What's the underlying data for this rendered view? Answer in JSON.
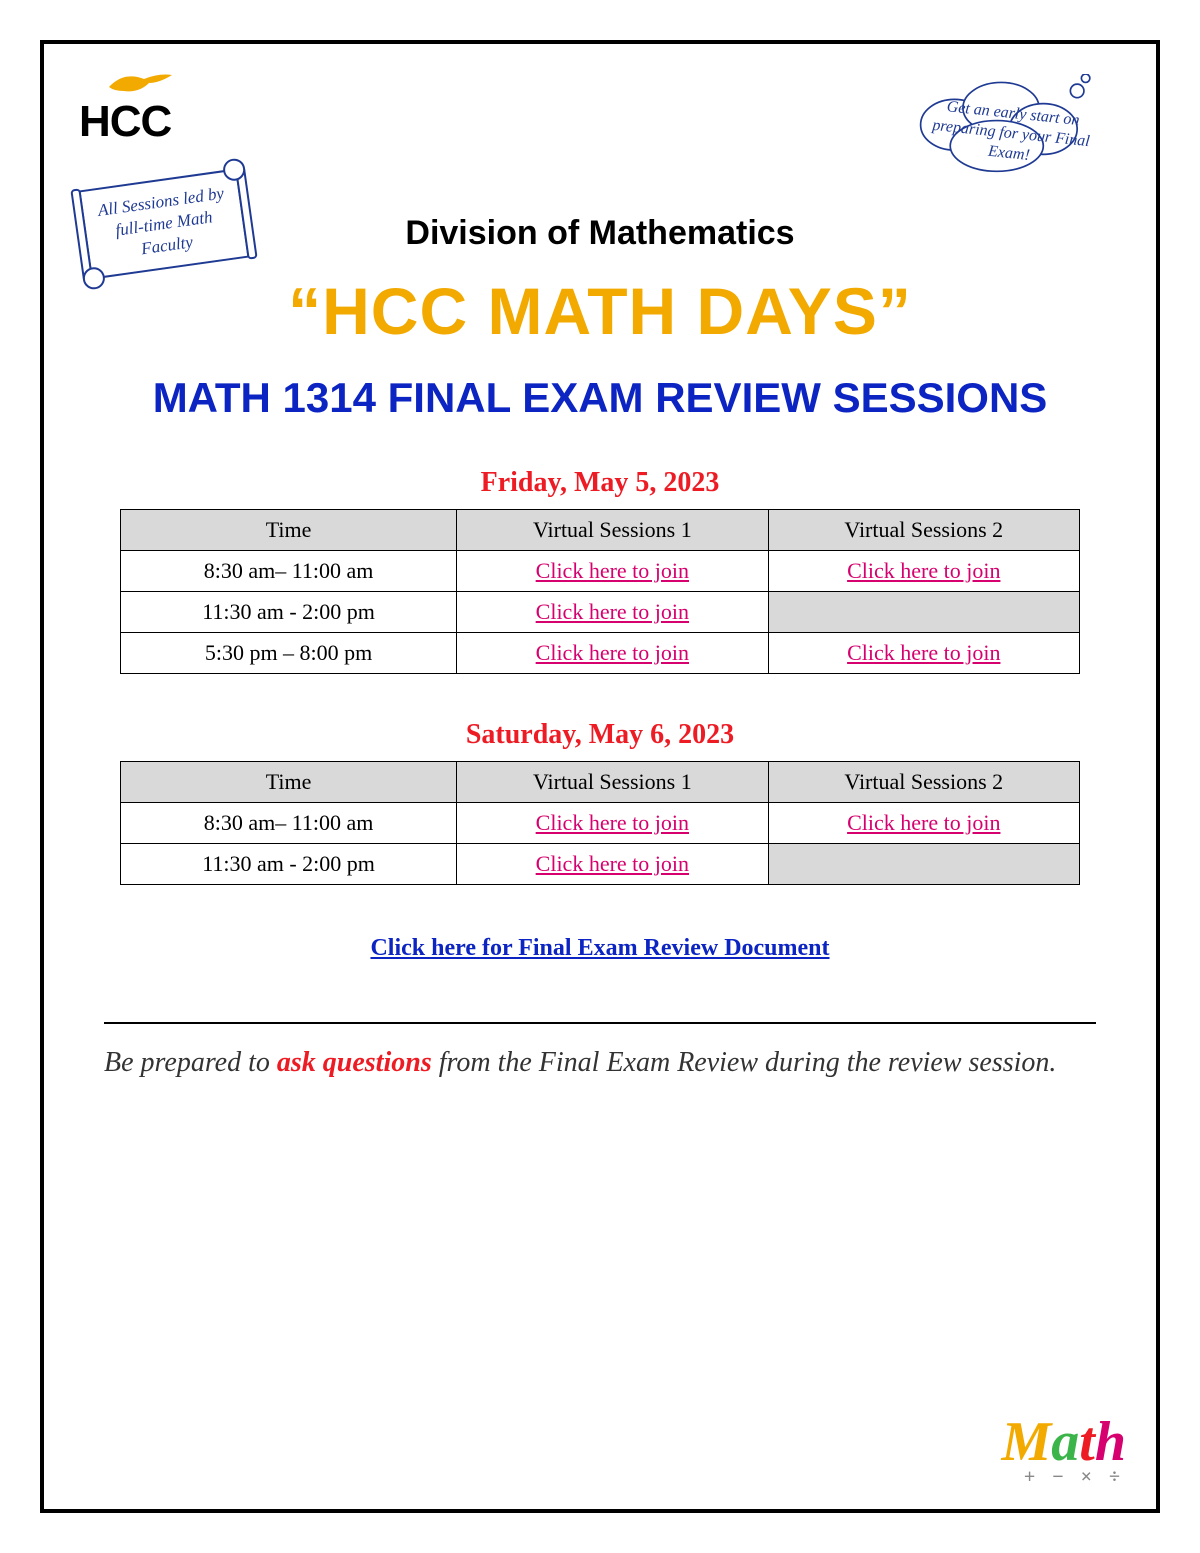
{
  "logo_text": "HCC",
  "scroll_note": "All Sessions led by full-time Math Faculty",
  "thought_bubble": "Get an early start on preparing for your Final Exam!",
  "division": "Division of Mathematics",
  "main_title": "“HCC MATH DAYS”",
  "sub_title": "MATH 1314 FINAL EXAM REVIEW SESSIONS",
  "columns": [
    "Time",
    "Virtual Sessions 1",
    "Virtual Sessions 2"
  ],
  "link_label": "Click here to join",
  "day1": {
    "heading": "Friday, May 5, 2023",
    "rows": [
      {
        "time": "8:30 am– 11:00 am",
        "s1": true,
        "s2": true
      },
      {
        "time": "11:30 am - 2:00 pm",
        "s1": true,
        "s2": false
      },
      {
        "time": "5:30 pm – 8:00 pm",
        "s1": true,
        "s2": true
      }
    ]
  },
  "day2": {
    "heading": "Saturday, May 6, 2023",
    "rows": [
      {
        "time": "8:30 am– 11:00 am",
        "s1": true,
        "s2": true
      },
      {
        "time": "11:30 am - 2:00 pm",
        "s1": true,
        "s2": false
      }
    ]
  },
  "review_doc": "Click here for Final Exam Review Document",
  "note_pre": "Be prepared to ",
  "note_highlight": "ask questions",
  "note_post": " from the Final Exam Review during the review session.",
  "colors": {
    "gold": "#f2a900",
    "blue": "#0b24c2",
    "red": "#ed1c24",
    "magenta": "#d6006e",
    "navy": "#1f3a93",
    "header_bg": "#d9d9d9"
  }
}
